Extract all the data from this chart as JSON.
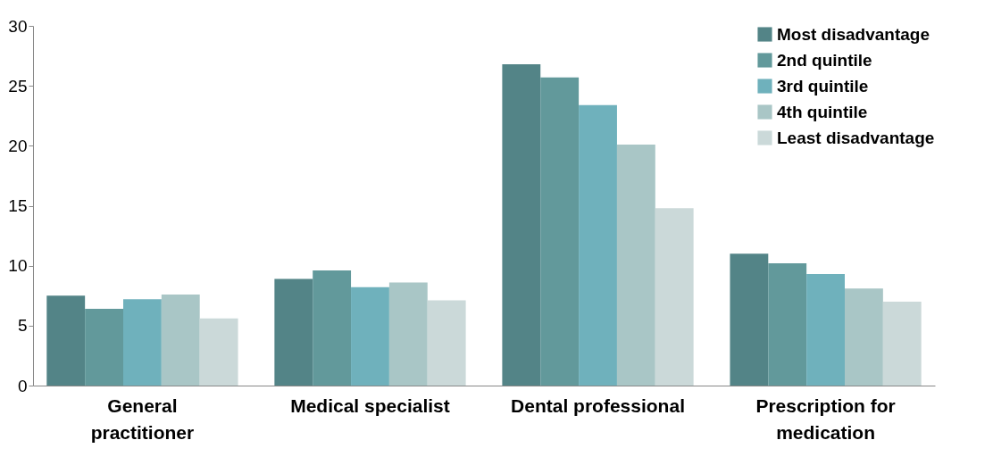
{
  "chart_data": {
    "type": "bar",
    "categories": [
      "General practitioner",
      "Medical specialist",
      "Dental professional",
      "Prescription for medication"
    ],
    "series": [
      {
        "name": "Most disadvantage",
        "color": "#538487",
        "values": [
          7.5,
          8.9,
          26.8,
          11.0
        ]
      },
      {
        "name": "2nd quintile",
        "color": "#62999b",
        "values": [
          6.4,
          9.6,
          25.7,
          10.2
        ]
      },
      {
        "name": "3rd quintile",
        "color": "#6fb1bc",
        "values": [
          7.2,
          8.2,
          23.4,
          9.3
        ]
      },
      {
        "name": "4th quintile",
        "color": "#a9c6c6",
        "values": [
          7.6,
          8.6,
          20.1,
          8.1
        ]
      },
      {
        "name": "Least disadvantage",
        "color": "#cbd9d9",
        "values": [
          5.6,
          7.1,
          14.8,
          7.0
        ]
      }
    ],
    "ylim": [
      0,
      30
    ],
    "yticks": [
      0,
      5,
      10,
      15,
      20,
      25,
      30
    ],
    "grid": false,
    "legend": "top right"
  }
}
